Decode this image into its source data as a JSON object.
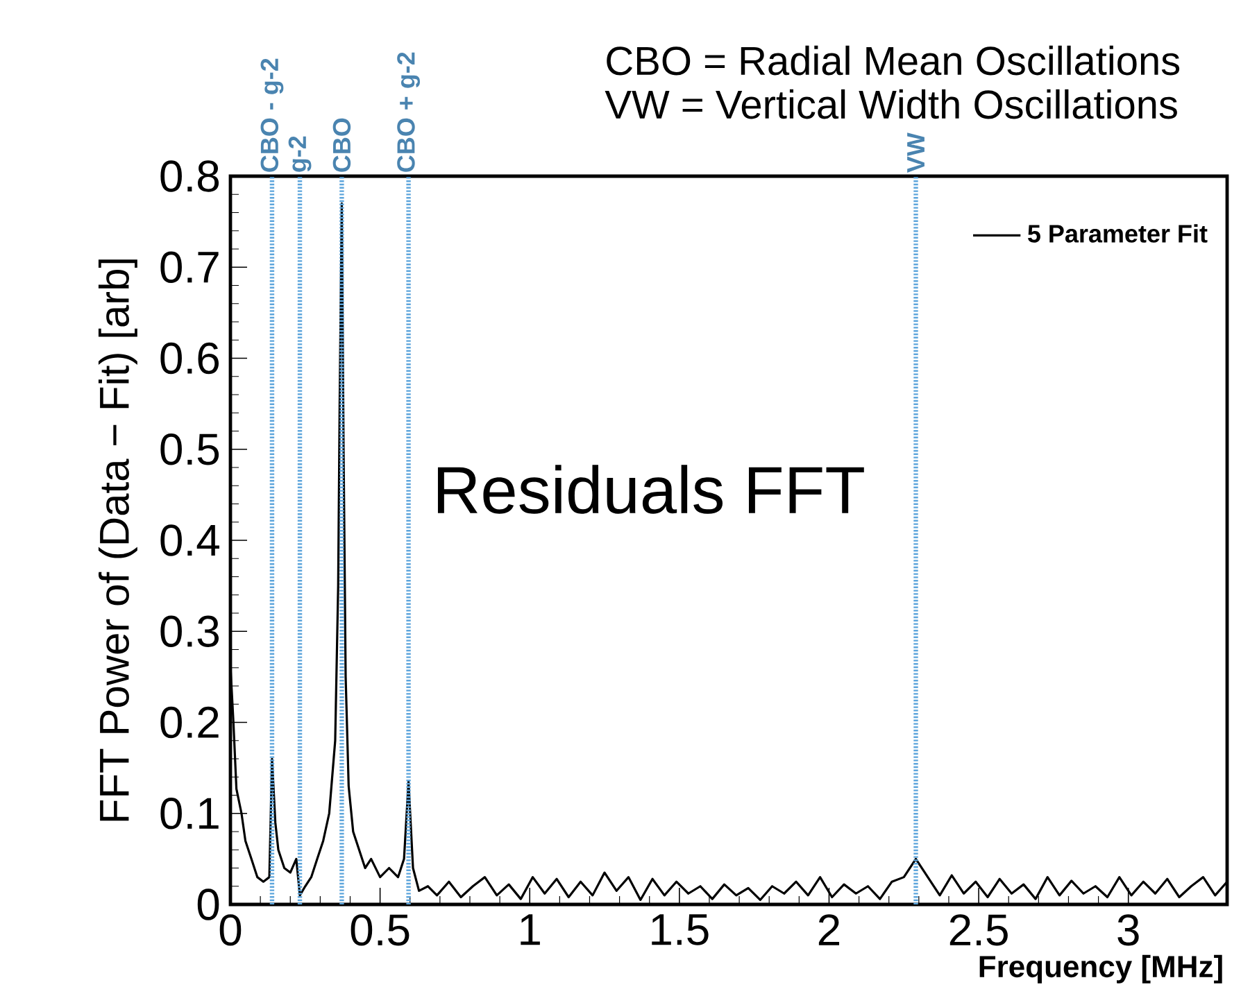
{
  "chart_data": {
    "type": "line",
    "xlabel": "Frequency [MHz]",
    "ylabel": "FFT Power of (Data − Fit) [arb]",
    "annotations": [
      "CBO = Radial Mean Oscillations",
      "VW = Vertical Width Oscillations",
      "Residuals FFT"
    ],
    "xlim": [
      0,
      3.33
    ],
    "ylim": [
      0,
      0.8
    ],
    "xticks": [
      0,
      0.5,
      1,
      1.5,
      2,
      2.5,
      3
    ],
    "yticks": [
      0,
      0.1,
      0.2,
      0.3,
      0.4,
      0.5,
      0.6,
      0.7,
      0.8
    ],
    "legend": "top right",
    "grid": false,
    "marker": "none",
    "line_style": "solid",
    "ref_lines": [
      {
        "axis": "x",
        "value": 0.139,
        "label": "CBO - g-2",
        "color": "#5da5dc",
        "line_style": "dotted"
      },
      {
        "axis": "x",
        "value": 0.232,
        "label": "g-2",
        "color": "#5da5dc",
        "line_style": "dotted"
      },
      {
        "axis": "x",
        "value": 0.372,
        "label": "CBO",
        "color": "#5da5dc",
        "line_style": "dotted"
      },
      {
        "axis": "x",
        "value": 0.595,
        "label": "CBO + g-2",
        "color": "#5da5dc",
        "line_style": "dotted"
      },
      {
        "axis": "x",
        "value": 2.29,
        "label": "VW",
        "color": "#5da5dc",
        "line_style": "dotted"
      }
    ],
    "series": [
      {
        "name": "5 Parameter Fit",
        "color": "#000000",
        "x": [
          0,
          0.01,
          0.02,
          0.037,
          0.05,
          0.07,
          0.09,
          0.11,
          0.13,
          0.139,
          0.15,
          0.16,
          0.18,
          0.2,
          0.22,
          0.232,
          0.25,
          0.27,
          0.29,
          0.31,
          0.33,
          0.35,
          0.36,
          0.365,
          0.372,
          0.378,
          0.385,
          0.395,
          0.41,
          0.43,
          0.45,
          0.47,
          0.5,
          0.53,
          0.56,
          0.58,
          0.595,
          0.61,
          0.63,
          0.66,
          0.69,
          0.73,
          0.77,
          0.81,
          0.85,
          0.89,
          0.93,
          0.97,
          1.01,
          1.05,
          1.09,
          1.13,
          1.17,
          1.21,
          1.25,
          1.29,
          1.33,
          1.37,
          1.41,
          1.45,
          1.49,
          1.53,
          1.57,
          1.61,
          1.65,
          1.69,
          1.73,
          1.77,
          1.81,
          1.85,
          1.89,
          1.93,
          1.97,
          2.01,
          2.05,
          2.09,
          2.13,
          2.17,
          2.21,
          2.25,
          2.29,
          2.33,
          2.37,
          2.41,
          2.45,
          2.49,
          2.53,
          2.57,
          2.61,
          2.65,
          2.69,
          2.73,
          2.77,
          2.81,
          2.85,
          2.89,
          2.93,
          2.97,
          3.01,
          3.05,
          3.09,
          3.13,
          3.17,
          3.21,
          3.25,
          3.29,
          3.33
        ],
        "values": [
          0.262,
          0.2,
          0.127,
          0.1,
          0.07,
          0.05,
          0.03,
          0.025,
          0.03,
          0.16,
          0.09,
          0.06,
          0.04,
          0.035,
          0.05,
          0.01,
          0.02,
          0.03,
          0.05,
          0.07,
          0.1,
          0.18,
          0.35,
          0.55,
          0.77,
          0.5,
          0.25,
          0.13,
          0.08,
          0.06,
          0.04,
          0.05,
          0.03,
          0.04,
          0.03,
          0.05,
          0.135,
          0.04,
          0.015,
          0.02,
          0.01,
          0.025,
          0.008,
          0.02,
          0.03,
          0.01,
          0.022,
          0.006,
          0.03,
          0.012,
          0.028,
          0.008,
          0.025,
          0.01,
          0.035,
          0.015,
          0.03,
          0.005,
          0.028,
          0.01,
          0.025,
          0.012,
          0.02,
          0.006,
          0.022,
          0.01,
          0.018,
          0.005,
          0.02,
          0.012,
          0.025,
          0.01,
          0.03,
          0.008,
          0.022,
          0.012,
          0.02,
          0.006,
          0.025,
          0.03,
          0.05,
          0.03,
          0.01,
          0.032,
          0.012,
          0.025,
          0.008,
          0.028,
          0.012,
          0.022,
          0.006,
          0.03,
          0.01,
          0.026,
          0.012,
          0.02,
          0.008,
          0.03,
          0.01,
          0.025,
          0.012,
          0.028,
          0.008,
          0.02,
          0.03,
          0.01,
          0.025
        ]
      }
    ]
  }
}
